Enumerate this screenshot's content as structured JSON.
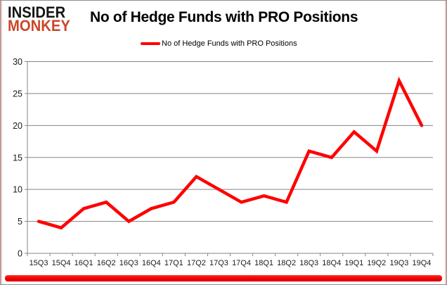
{
  "logo": {
    "line1": "INSIDER",
    "line2": "MONKEY"
  },
  "header": {
    "title": "No of Hedge Funds with PRO Positions"
  },
  "legend": {
    "label": "No of Hedge Funds with PRO Positions"
  },
  "chart_data": {
    "type": "line",
    "title": "No of Hedge Funds with PRO Positions",
    "categories": [
      "15Q3",
      "15Q4",
      "16Q1",
      "16Q2",
      "16Q3",
      "16Q4",
      "17Q1",
      "17Q2",
      "17Q3",
      "17Q4",
      "18Q1",
      "18Q2",
      "18Q3",
      "18Q4",
      "19Q1",
      "19Q2",
      "19Q3",
      "19Q4"
    ],
    "values": [
      5,
      4,
      7,
      8,
      5,
      7,
      8,
      12,
      10,
      8,
      9,
      8,
      16,
      15,
      19,
      16,
      27,
      20
    ],
    "xlabel": "",
    "ylabel": "",
    "ylim": [
      0,
      30
    ],
    "ytick_step": 5,
    "yticks": [
      0,
      5,
      10,
      15,
      20,
      25,
      30
    ],
    "grid": true,
    "legend_position": "top",
    "line_color": "#FF0000",
    "gridline_color": "#858585",
    "axis_color": "#858585",
    "tick_label_color": "#1a1a1a"
  },
  "colors": {
    "logo_black": "#141414",
    "logo_red": "#CC4529",
    "bottom_bar_red": "#FF0000",
    "border_gray": "#8F8F8F",
    "border_pink": "#F2C4C4"
  }
}
